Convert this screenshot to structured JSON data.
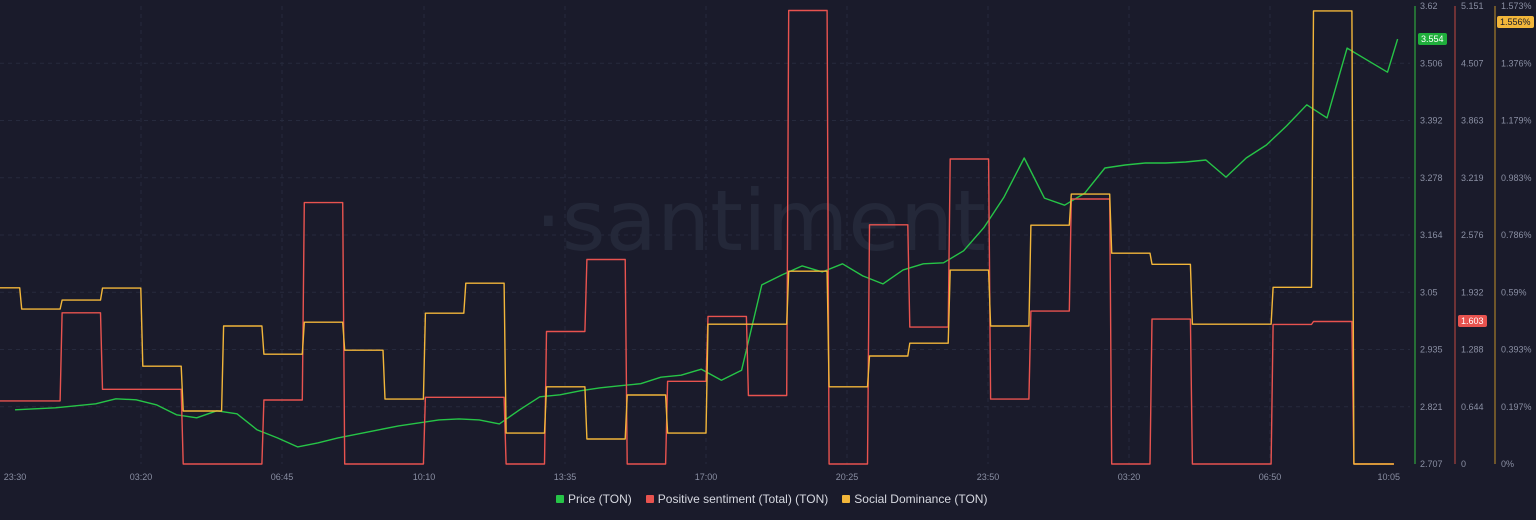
{
  "chart_data": {
    "type": "line",
    "watermark": "·santiment",
    "colors": {
      "price": "#26c447",
      "sentiment": "#e8534f",
      "dominance": "#f2b63a",
      "background": "#1a1b2b"
    },
    "x_ticks": [
      "23:30",
      "03:20",
      "06:45",
      "10:10",
      "13:35",
      "17:00",
      "20:25",
      "23:50",
      "03:20",
      "06:50",
      "10:05"
    ],
    "axes": {
      "price": {
        "ticks": [
          "3.62",
          "3.506",
          "3.392",
          "3.278",
          "3.164",
          "3.05",
          "2.935",
          "2.821",
          "2.707"
        ],
        "ylim": [
          2.707,
          3.62
        ]
      },
      "sentiment": {
        "ticks": [
          "5.151",
          "4.507",
          "3.863",
          "3.219",
          "2.576",
          "1.932",
          "1.288",
          "0.644",
          "0"
        ],
        "ylim": [
          0,
          5.151
        ]
      },
      "dominance": {
        "ticks": [
          "1.573%",
          "1.376%",
          "1.179%",
          "0.983%",
          "0.786%",
          "0.59%",
          "0.393%",
          "0.197%",
          "0%"
        ],
        "ylim": [
          0,
          1.573
        ]
      }
    },
    "grid": true,
    "legend_placement": "bottom-center",
    "series": [
      {
        "name": "Price (TON)",
        "key": "price",
        "style": "line",
        "last_value": "3.554",
        "points": [
          [
            "23:30",
            2.815
          ],
          [
            "00:00",
            2.817
          ],
          [
            "00:30",
            2.819
          ],
          [
            "01:00",
            2.823
          ],
          [
            "01:30",
            2.827
          ],
          [
            "02:00",
            2.837
          ],
          [
            "02:30",
            2.835
          ],
          [
            "03:00",
            2.825
          ],
          [
            "03:30",
            2.805
          ],
          [
            "04:00",
            2.799
          ],
          [
            "04:30",
            2.813
          ],
          [
            "05:00",
            2.807
          ],
          [
            "05:30",
            2.775
          ],
          [
            "06:00",
            2.759
          ],
          [
            "06:30",
            2.741
          ],
          [
            "07:00",
            2.749
          ],
          [
            "07:30",
            2.759
          ],
          [
            "08:00",
            2.767
          ],
          [
            "08:30",
            2.775
          ],
          [
            "09:00",
            2.783
          ],
          [
            "09:30",
            2.789
          ],
          [
            "10:00",
            2.795
          ],
          [
            "10:30",
            2.797
          ],
          [
            "11:00",
            2.795
          ],
          [
            "11:30",
            2.787
          ],
          [
            "12:00",
            2.815
          ],
          [
            "12:30",
            2.841
          ],
          [
            "13:00",
            2.845
          ],
          [
            "13:30",
            2.853
          ],
          [
            "14:00",
            2.859
          ],
          [
            "14:30",
            2.863
          ],
          [
            "15:00",
            2.867
          ],
          [
            "15:30",
            2.88
          ],
          [
            "16:00",
            2.884
          ],
          [
            "16:30",
            2.896
          ],
          [
            "17:00",
            2.874
          ],
          [
            "17:30",
            2.894
          ],
          [
            "18:00",
            3.064
          ],
          [
            "18:30",
            3.084
          ],
          [
            "19:00",
            3.102
          ],
          [
            "19:30",
            3.09
          ],
          [
            "20:00",
            3.106
          ],
          [
            "20:30",
            3.082
          ],
          [
            "21:00",
            3.066
          ],
          [
            "21:30",
            3.094
          ],
          [
            "22:00",
            3.106
          ],
          [
            "22:30",
            3.108
          ],
          [
            "23:00",
            3.132
          ],
          [
            "23:30",
            3.178
          ],
          [
            "00:00",
            3.239
          ],
          [
            "00:30",
            3.317
          ],
          [
            "01:00",
            3.237
          ],
          [
            "01:30",
            3.223
          ],
          [
            "02:00",
            3.247
          ],
          [
            "02:30",
            3.297
          ],
          [
            "03:00",
            3.303
          ],
          [
            "03:30",
            3.307
          ],
          [
            "04:00",
            3.307
          ],
          [
            "04:30",
            3.309
          ],
          [
            "05:00",
            3.313
          ],
          [
            "05:30",
            3.279
          ],
          [
            "06:00",
            3.317
          ],
          [
            "06:30",
            3.343
          ],
          [
            "07:00",
            3.381
          ],
          [
            "07:30",
            3.423
          ],
          [
            "08:00",
            3.397
          ],
          [
            "08:30",
            3.536
          ],
          [
            "09:00",
            3.512
          ],
          [
            "09:30",
            3.488
          ],
          [
            "09:45",
            3.554
          ]
        ]
      },
      {
        "name": "Positive sentiment (Total) (TON)",
        "key": "sentiment",
        "style": "step",
        "last_value": "1.603",
        "points": [
          [
            "22:40",
            0.71
          ],
          [
            "23:40",
            0.71
          ],
          [
            "00:40",
            1.7
          ],
          [
            "01:40",
            0.84
          ],
          [
            "02:40",
            0.84
          ],
          [
            "03:40",
            0
          ],
          [
            "04:40",
            0
          ],
          [
            "05:40",
            0.72
          ],
          [
            "06:40",
            2.94
          ],
          [
            "07:40",
            0
          ],
          [
            "08:40",
            0
          ],
          [
            "09:40",
            0.75
          ],
          [
            "10:40",
            0.75
          ],
          [
            "11:40",
            0
          ],
          [
            "12:40",
            1.49
          ],
          [
            "13:40",
            2.3
          ],
          [
            "14:40",
            0
          ],
          [
            "15:40",
            0.93
          ],
          [
            "16:40",
            1.66
          ],
          [
            "17:40",
            0.77
          ],
          [
            "18:40",
            5.1
          ],
          [
            "19:40",
            0
          ],
          [
            "20:40",
            2.69
          ],
          [
            "21:40",
            1.54
          ],
          [
            "22:40",
            3.43
          ],
          [
            "23:40",
            0.73
          ],
          [
            "00:40",
            1.72
          ],
          [
            "01:40",
            2.98
          ],
          [
            "02:40",
            0
          ],
          [
            "03:40",
            1.63
          ],
          [
            "04:40",
            0
          ],
          [
            "05:40",
            0
          ],
          [
            "06:40",
            1.57
          ],
          [
            "07:40",
            1.603
          ],
          [
            "08:40",
            0
          ]
        ]
      },
      {
        "name": "Social Dominance (TON)",
        "key": "dominance",
        "style": "step",
        "last_value": "1.556%",
        "points": [
          [
            "22:40",
            0.605
          ],
          [
            "23:40",
            0.532
          ],
          [
            "00:40",
            0.563
          ],
          [
            "01:40",
            0.604
          ],
          [
            "02:40",
            0.336
          ],
          [
            "03:40",
            0.182
          ],
          [
            "04:40",
            0.474
          ],
          [
            "05:40",
            0.377
          ],
          [
            "06:40",
            0.487
          ],
          [
            "07:40",
            0.391
          ],
          [
            "08:40",
            0.223
          ],
          [
            "09:40",
            0.518
          ],
          [
            "10:40",
            0.621
          ],
          [
            "11:40",
            0.106
          ],
          [
            "12:40",
            0.265
          ],
          [
            "13:40",
            0.086
          ],
          [
            "14:40",
            0.237
          ],
          [
            "15:40",
            0.106
          ],
          [
            "16:40",
            0.48
          ],
          [
            "17:40",
            0.48
          ],
          [
            "18:40",
            0.662
          ],
          [
            "19:40",
            0.265
          ],
          [
            "20:40",
            0.371
          ],
          [
            "21:40",
            0.415
          ],
          [
            "22:40",
            0.666
          ],
          [
            "23:40",
            0.474
          ],
          [
            "00:40",
            0.82
          ],
          [
            "01:40",
            0.927
          ],
          [
            "02:40",
            0.724
          ],
          [
            "03:40",
            0.686
          ],
          [
            "04:40",
            0.48
          ],
          [
            "05:40",
            0.48
          ],
          [
            "06:40",
            0.607
          ],
          [
            "07:40",
            1.556
          ],
          [
            "08:40",
            0
          ]
        ]
      }
    ]
  }
}
